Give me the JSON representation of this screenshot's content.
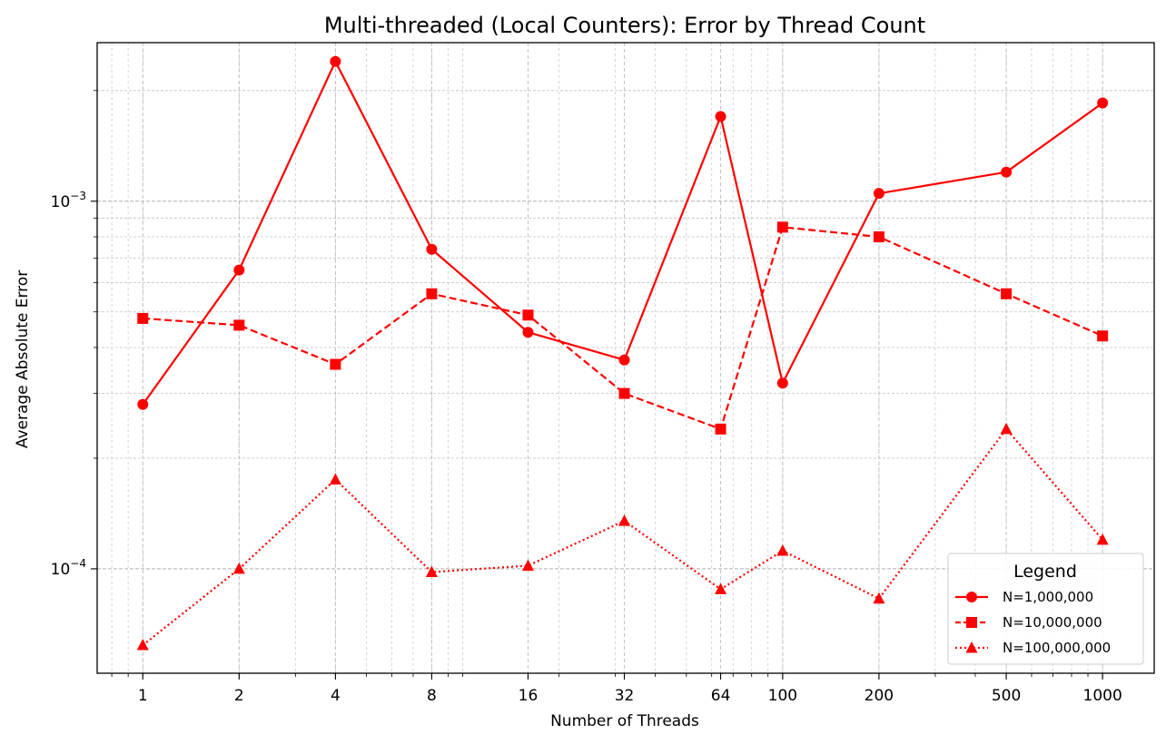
{
  "chart_data": {
    "type": "line",
    "title": "Multi-threaded (Local Counters): Error by Thread Count",
    "xlabel": "Number of Threads",
    "ylabel": "Average Absolute Error",
    "x_scale": "log2",
    "y_scale": "log10",
    "x": [
      1,
      2,
      4,
      8,
      16,
      32,
      64,
      100,
      200,
      500,
      1000
    ],
    "x_tick_labels": [
      "1",
      "2",
      "4",
      "8",
      "16",
      "32",
      "64",
      "100",
      "200",
      "500",
      "1000"
    ],
    "xlim": [
      0.72,
      1450
    ],
    "ylim": [
      5.2e-05,
      0.0027
    ],
    "y_tick_labels": [
      {
        "value": 0.0001,
        "base": "10",
        "exp": "−4"
      },
      {
        "value": 0.001,
        "base": "10",
        "exp": "−3"
      }
    ],
    "grid": true,
    "color": "#ff0000",
    "legend": {
      "title": "Legend",
      "position": "lower-right"
    },
    "series": [
      {
        "name": "N=1,000,000",
        "marker": "circle",
        "linestyle": "solid",
        "values": [
          0.00028,
          0.00065,
          0.0024,
          0.00074,
          0.00044,
          0.00037,
          0.0017,
          0.00032,
          0.00105,
          0.0012,
          0.00185
        ]
      },
      {
        "name": "N=10,000,000",
        "marker": "square",
        "linestyle": "dashed",
        "values": [
          0.00048,
          0.00046,
          0.00036,
          0.00056,
          0.00049,
          0.0003,
          0.00024,
          0.00085,
          0.0008,
          0.00056,
          0.00043
        ]
      },
      {
        "name": "N=100,000,000",
        "marker": "triangle",
        "linestyle": "dotted",
        "values": [
          6.2e-05,
          0.0001,
          0.000175,
          9.8e-05,
          0.000102,
          0.000135,
          8.8e-05,
          0.000112,
          8.3e-05,
          0.00024,
          0.00012
        ]
      }
    ]
  }
}
